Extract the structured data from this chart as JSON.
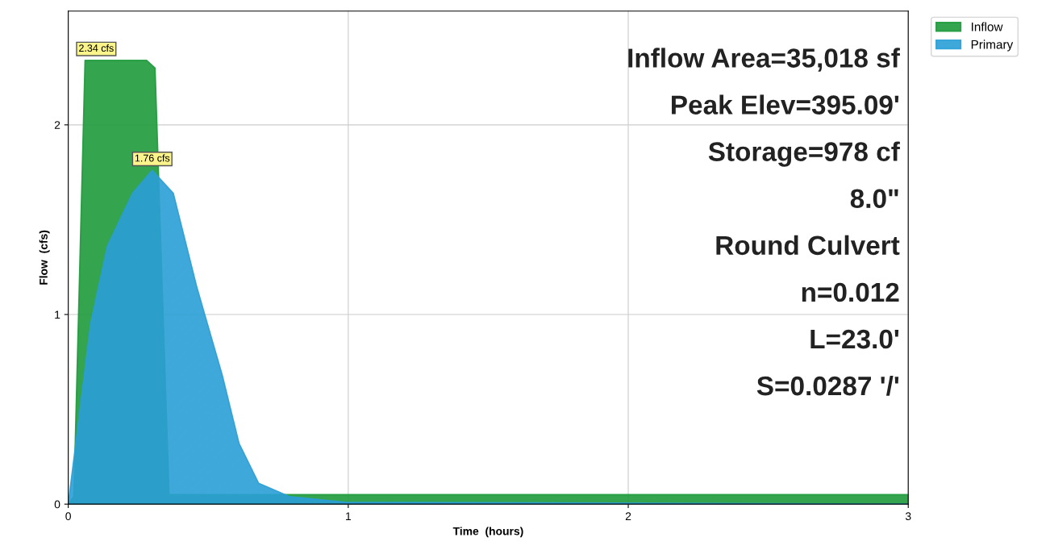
{
  "chart_data": {
    "type": "area",
    "xlabel": "Time  (hours)",
    "ylabel": "Flow  (cfs)",
    "xlim": [
      0,
      3
    ],
    "xticks": [
      0,
      1,
      2,
      3
    ],
    "ylim": [
      0,
      2.6
    ],
    "yticks": [
      0,
      1,
      2
    ],
    "grid": true,
    "legend": "top right",
    "series": [
      {
        "name": "Inflow",
        "color": "#1e9a3c",
        "x": [
          0,
          0.02,
          0.06,
          0.28,
          0.31,
          0.36,
          3
        ],
        "values": [
          0,
          0.04,
          2.34,
          2.34,
          2.3,
          0.05,
          0.05
        ]
      },
      {
        "name": "Primary",
        "color": "#2a9fd6",
        "x": [
          0,
          0.08,
          0.14,
          0.23,
          0.3,
          0.375,
          0.46,
          0.55,
          0.61,
          0.68,
          0.79,
          0.99,
          3
        ],
        "values": [
          0,
          0.95,
          1.36,
          1.64,
          1.76,
          1.64,
          1.14,
          0.68,
          0.32,
          0.11,
          0.04,
          0.01,
          0
        ]
      }
    ],
    "annotations": [
      {
        "text": "2.34 cfs",
        "x": 0.1,
        "y": 2.34
      },
      {
        "text": "1.76 cfs",
        "x": 0.3,
        "y": 1.76
      },
      "Inflow Area=35,018 sf",
      "Peak Elev=395.09'",
      "Storage=978 cf",
      "8.0\"",
      "Round Culvert",
      "n=0.012",
      "L=23.0'",
      "S=0.0287 '/'"
    ]
  }
}
